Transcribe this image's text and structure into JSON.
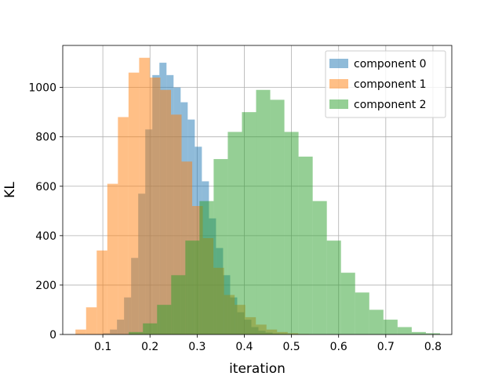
{
  "chart_data": {
    "type": "histogram",
    "title": "",
    "xlabel": "iteration",
    "ylabel": "KL",
    "xlim": [
      0.015,
      0.84
    ],
    "ylim": [
      0,
      1170
    ],
    "xticks": [
      0.1,
      0.2,
      0.3,
      0.4,
      0.5,
      0.6,
      0.7,
      0.8
    ],
    "yticks": [
      0,
      200,
      400,
      600,
      800,
      1000
    ],
    "xtick_labels": [
      "0.1",
      "0.2",
      "0.3",
      "0.4",
      "0.5",
      "0.6",
      "0.7",
      "0.8"
    ],
    "ytick_labels": [
      "0",
      "200",
      "400",
      "600",
      "800",
      "1000"
    ],
    "grid": true,
    "legend_position": "top-right",
    "alpha": 0.5,
    "series": [
      {
        "name": "component 0",
        "color": "#1f77b4",
        "bin_edges": [
          0.1,
          0.115,
          0.13,
          0.145,
          0.16,
          0.175,
          0.19,
          0.205,
          0.22,
          0.235,
          0.25,
          0.265,
          0.28,
          0.295,
          0.31,
          0.325,
          0.34,
          0.355,
          0.37,
          0.385,
          0.4,
          0.415,
          0.43,
          0.445,
          0.46,
          0.475,
          0.49,
          0.505,
          0.52,
          0.535,
          0.55,
          0.565,
          0.58
        ],
        "counts": [
          5,
          20,
          60,
          150,
          310,
          570,
          830,
          1050,
          1100,
          1050,
          1000,
          940,
          870,
          760,
          620,
          470,
          350,
          240,
          150,
          90,
          60,
          30,
          15,
          8,
          4,
          2,
          1,
          0,
          0,
          0,
          0,
          0
        ]
      },
      {
        "name": "component 1",
        "color": "#ff7f0e",
        "bin_edges": [
          0.042,
          0.0645,
          0.087,
          0.1095,
          0.132,
          0.1545,
          0.177,
          0.1995,
          0.222,
          0.2445,
          0.267,
          0.2895,
          0.312,
          0.3345,
          0.357,
          0.3795,
          0.402,
          0.4245,
          0.447,
          0.4695,
          0.492,
          0.5145,
          0.537,
          0.5595
        ],
        "counts": [
          20,
          110,
          340,
          610,
          880,
          1060,
          1120,
          1040,
          990,
          890,
          700,
          520,
          390,
          270,
          160,
          120,
          70,
          40,
          20,
          10,
          5,
          2,
          1
        ]
      },
      {
        "name": "component 2",
        "color": "#2ca02c",
        "bin_edges": [
          0.155,
          0.185,
          0.215,
          0.245,
          0.275,
          0.305,
          0.335,
          0.365,
          0.395,
          0.425,
          0.455,
          0.485,
          0.515,
          0.545,
          0.575,
          0.605,
          0.635,
          0.665,
          0.695,
          0.725,
          0.755,
          0.785,
          0.815
        ],
        "counts": [
          10,
          45,
          120,
          240,
          380,
          540,
          710,
          820,
          900,
          990,
          950,
          820,
          720,
          540,
          380,
          250,
          170,
          100,
          60,
          30,
          10,
          5
        ]
      }
    ]
  }
}
